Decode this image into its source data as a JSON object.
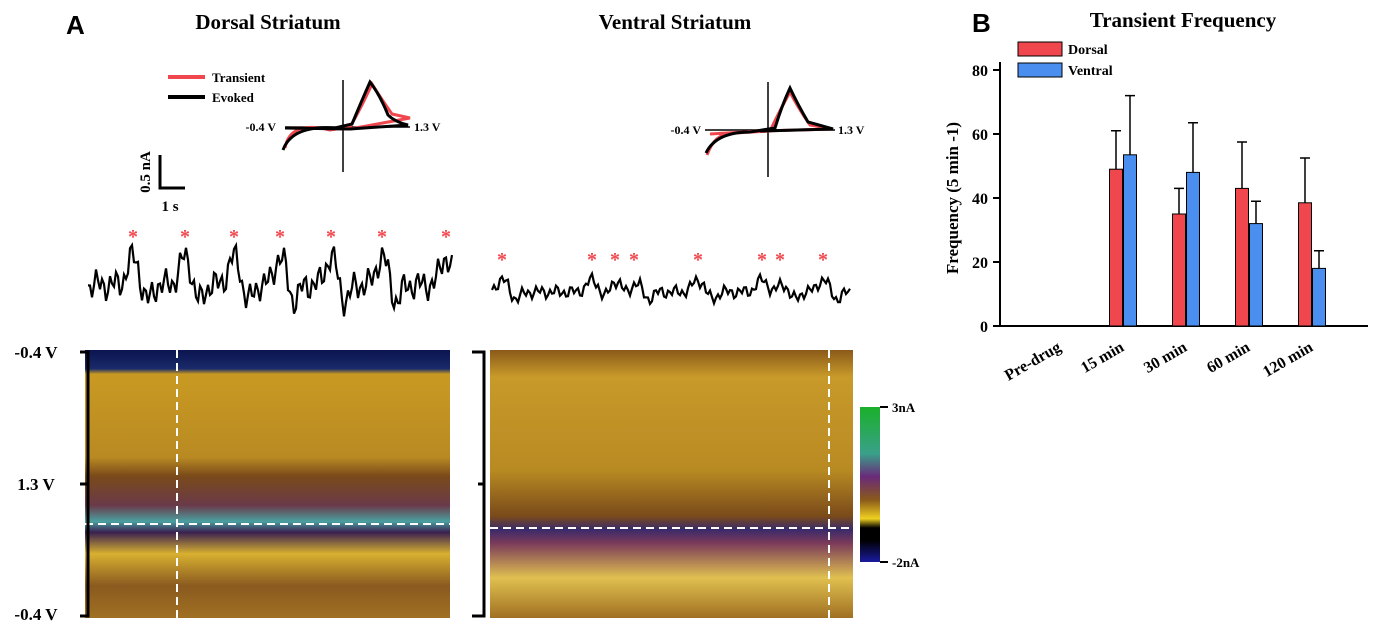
{
  "panel_a": {
    "label": "A",
    "dorsal_title": "Dorsal Striatum",
    "ventral_title": "Ventral Striatum",
    "legend": [
      "Transient",
      "Evoked"
    ],
    "cv_low": "-0.4 V",
    "cv_high": "1.3 V",
    "scale_current": "0.5 nA",
    "scale_time": "1 s",
    "marker": "*",
    "plot_axis": [
      "-0.4 V",
      "1.3 V",
      "-0.4 V"
    ],
    "colorbar": [
      "3nA",
      "-2nA"
    ]
  },
  "chart_data": {
    "type": "bar",
    "panel_label": "B",
    "title": "Transient Frequency",
    "ylabel": "Frequency (5 min -1)",
    "categories": [
      "Pre-drug",
      "15 min",
      "30 min",
      "60 min",
      "120 min"
    ],
    "series": [
      {
        "name": "Dorsal",
        "color": "#f0474e",
        "values": [
          null,
          49,
          35,
          43,
          38.5
        ],
        "errors": [
          null,
          12,
          8,
          14.5,
          14
        ]
      },
      {
        "name": "Ventral",
        "color": "#4a8ff0",
        "values": [
          null,
          53.5,
          48,
          32,
          18
        ],
        "errors": [
          null,
          18.5,
          15.5,
          7,
          5.5
        ]
      }
    ],
    "ylim": [
      0,
      80
    ],
    "yticks": [
      0,
      20,
      40,
      60,
      80
    ]
  }
}
